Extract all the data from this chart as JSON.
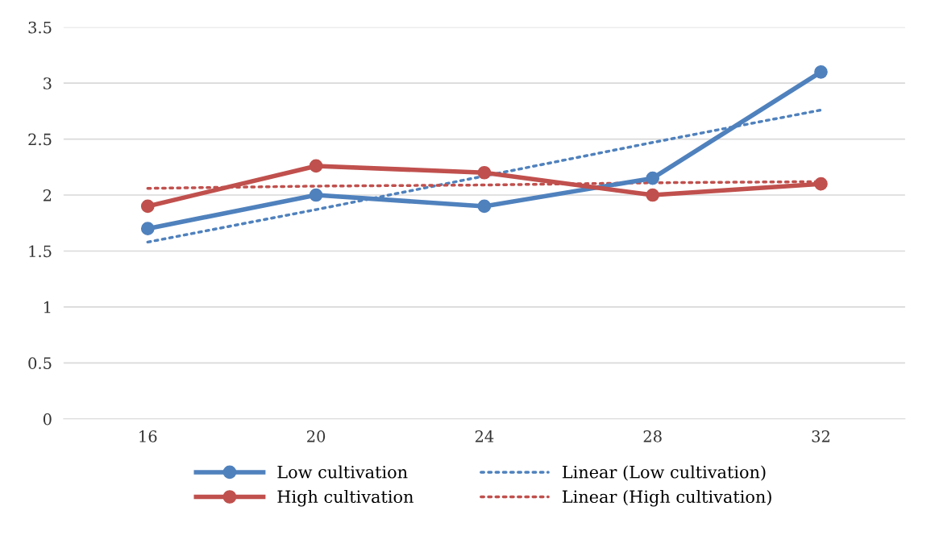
{
  "chart_data": {
    "type": "line",
    "categories": [
      "16",
      "20",
      "24",
      "28",
      "32"
    ],
    "series": [
      {
        "name": "Low cultivation",
        "color": "#4f81bd",
        "values": [
          1.7,
          2.0,
          1.9,
          2.15,
          3.1
        ],
        "marker": "circle",
        "line_style": "solid"
      },
      {
        "name": "High cultivation",
        "color": "#c0504d",
        "values": [
          1.9,
          2.26,
          2.2,
          2.0,
          2.1
        ],
        "marker": "circle",
        "line_style": "solid"
      },
      {
        "name": "Linear (Low cultivation)",
        "color": "#4f81bd",
        "values": [
          1.58,
          1.87,
          2.17,
          2.47,
          2.76
        ],
        "marker": "none",
        "line_style": "dotted"
      },
      {
        "name": "Linear (High cultivation)",
        "color": "#c0504d",
        "values": [
          2.06,
          2.08,
          2.09,
          2.11,
          2.12
        ],
        "marker": "none",
        "line_style": "dotted"
      }
    ],
    "ylim": [
      0,
      3.5
    ],
    "yticks": [
      0,
      0.5,
      1,
      1.5,
      2,
      2.5,
      3,
      3.5
    ],
    "grid": "y",
    "legend": "bottom"
  }
}
